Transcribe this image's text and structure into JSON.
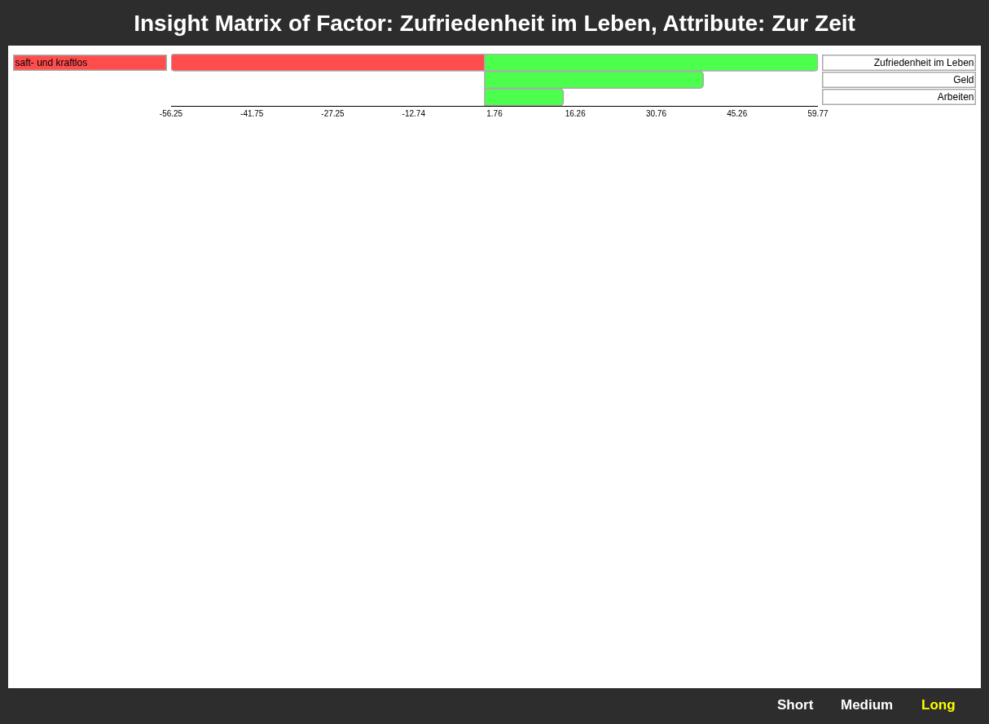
{
  "chart_data": {
    "type": "bar",
    "orientation": "horizontal",
    "title": "Insight Matrix of Factor: Zufriedenheit im Leben, Attribute: Zur Zeit",
    "categories": [
      "Zufriedenheit im Leben",
      "Geld",
      "Arbeiten"
    ],
    "series": [
      {
        "name": "saft- und kraftlos",
        "color": "#ff4d4d",
        "values": [
          -56.25,
          null,
          null
        ]
      },
      {
        "color": "#4dff4d",
        "values": [
          59.77,
          39.2,
          14.1
        ]
      }
    ],
    "xlim": [
      -56.25,
      59.77
    ],
    "xticks": [
      {
        "value": -56.25,
        "label": "-56.25"
      },
      {
        "value": -41.75,
        "label": "-41.75"
      },
      {
        "value": -27.25,
        "label": "-27.25"
      },
      {
        "value": -12.74,
        "label": "-12.74"
      },
      {
        "value": 1.76,
        "label": "1.76"
      },
      {
        "value": 16.26,
        "label": "16.26"
      },
      {
        "value": 30.76,
        "label": "30.76"
      },
      {
        "value": 45.26,
        "label": "45.26"
      },
      {
        "value": 59.77,
        "label": "59.77"
      }
    ],
    "annotations": [
      "Short",
      "Medium",
      "Long"
    ]
  }
}
